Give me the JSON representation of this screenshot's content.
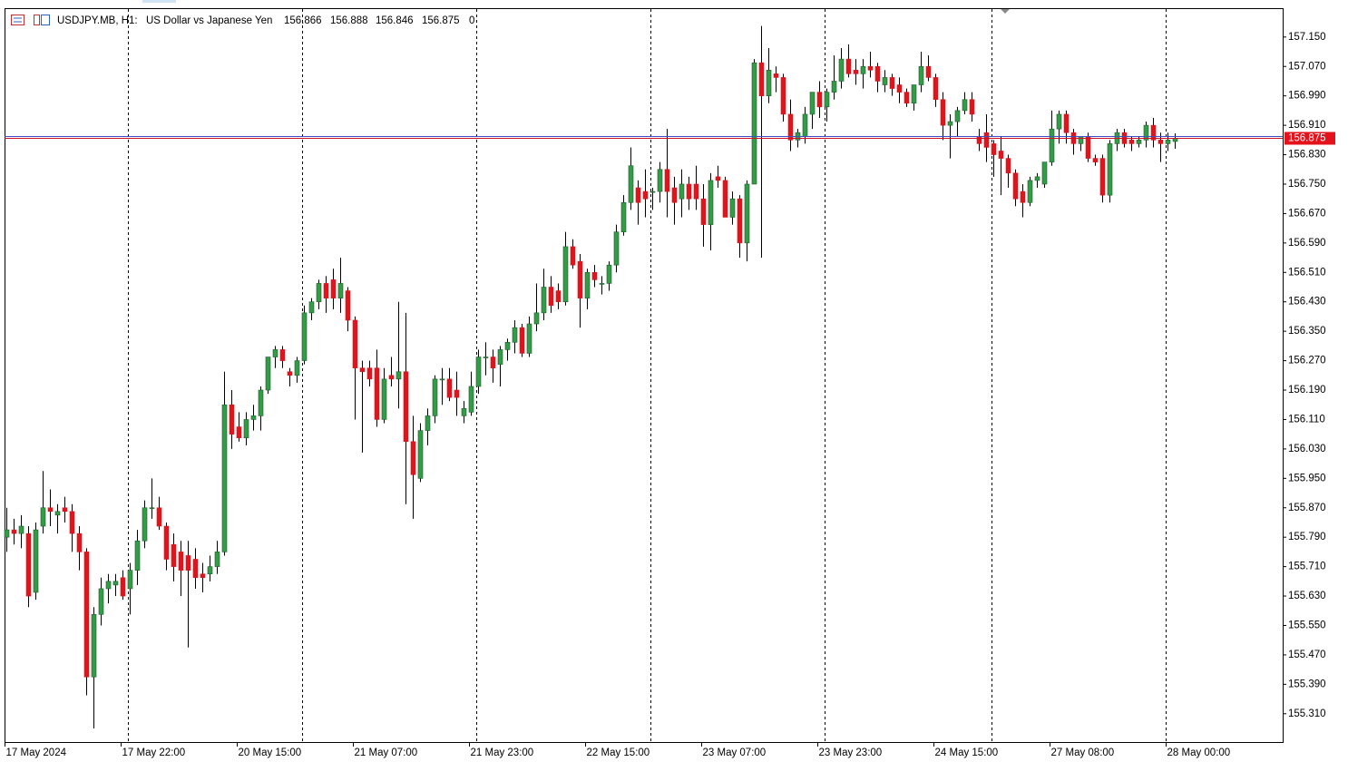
{
  "chart_data": {
    "type": "candlestick",
    "symbol": "USDJPY.MB, H1:",
    "description": "US Dollar vs Japanese Yen",
    "volume": 0,
    "up_color": "#2f9e44",
    "down_color": "#e3121b",
    "wick_color": "#000000",
    "categories": [
      "17 May 2024",
      null,
      null,
      null,
      null,
      null,
      null,
      null,
      null,
      null,
      null,
      null,
      null,
      null,
      null,
      null,
      "17 May 22:00",
      null,
      null,
      null,
      null,
      null,
      null,
      null,
      null,
      null,
      null,
      null,
      null,
      null,
      null,
      null,
      "20 May 15:00",
      null,
      null,
      null,
      null,
      null,
      null,
      null,
      null,
      null,
      null,
      null,
      null,
      null,
      null,
      null,
      "21 May 07:00",
      null,
      null,
      null,
      null,
      null,
      null,
      null,
      null,
      null,
      null,
      null,
      null,
      null,
      null,
      null,
      "21 May 23:00",
      null,
      null,
      null,
      null,
      null,
      null,
      null,
      null,
      null,
      null,
      null,
      null,
      null,
      null,
      null,
      "22 May 15:00",
      null,
      null,
      null,
      null,
      null,
      null,
      null,
      null,
      null,
      null,
      null,
      null,
      null,
      null,
      null,
      "23 May 07:00",
      null,
      null,
      null,
      null,
      null,
      null,
      null,
      null,
      null,
      null,
      null,
      null,
      null,
      null,
      null,
      "23 May 23:00",
      null,
      null,
      null,
      null,
      null,
      null,
      null,
      null,
      null,
      null,
      null,
      null,
      null,
      null,
      null,
      "24 May 15:00",
      null,
      null,
      null,
      null,
      null,
      null,
      null,
      null,
      null,
      null,
      null,
      null,
      null,
      null,
      null,
      "27 May 08:00",
      null,
      null,
      null,
      null,
      null,
      null,
      null,
      null,
      null,
      null,
      null,
      null,
      null,
      null,
      null,
      "28 May 00:00",
      null
    ],
    "open": [
      155.79,
      155.81,
      155.8,
      155.8,
      155.64,
      155.82,
      155.87,
      155.85,
      155.87,
      155.86,
      155.8,
      155.75,
      155.41,
      155.58,
      155.65,
      155.66,
      155.68,
      155.65,
      155.7,
      155.78,
      155.87,
      155.87,
      155.82,
      155.77,
      155.75,
      155.74,
      155.73,
      155.69,
      155.69,
      155.71,
      155.75,
      156.15,
      156.09,
      156.06,
      156.11,
      156.12,
      156.19,
      156.28,
      156.3,
      156.24,
      156.23,
      156.27,
      156.4,
      156.43,
      156.48,
      156.49,
      156.44,
      156.46,
      156.38,
      156.25,
      156.25,
      156.25,
      156.11,
      156.23,
      156.22,
      156.24,
      156.05,
      155.95,
      156.08,
      156.12,
      156.22,
      156.22,
      156.19,
      156.12,
      156.13,
      156.2,
      156.28,
      156.28,
      156.26,
      156.3,
      156.32,
      156.36,
      156.29,
      156.37,
      156.4,
      156.47,
      156.46,
      156.43,
      156.58,
      156.54,
      156.44,
      156.51,
      156.48,
      156.48,
      156.53,
      156.62,
      156.7,
      156.74,
      156.73,
      156.73,
      156.73,
      156.79,
      156.74,
      156.71,
      156.75,
      156.75,
      156.71,
      156.64,
      156.77,
      156.76,
      156.66,
      156.71,
      156.59,
      156.75,
      157.08,
      156.99,
      157.05,
      157.04,
      156.94,
      156.87,
      156.88,
      156.94,
      157.0,
      156.96,
      157.0,
      157.03,
      157.09,
      157.06,
      157.05,
      157.07,
      157.07,
      157.02,
      157.04,
      157.02,
      157.0,
      156.97,
      157.02,
      157.07,
      157.04,
      156.98,
      156.91,
      156.92,
      156.95,
      156.98,
      156.88,
      156.89,
      156.86,
      156.84,
      156.82,
      156.78,
      156.73,
      156.7,
      156.76,
      156.75,
      156.81,
      156.9,
      156.94,
      156.89,
      156.86,
      156.88,
      156.82,
      156.82,
      156.72,
      156.86,
      156.89,
      156.87,
      156.86,
      156.87,
      156.91,
      156.87,
      156.86,
      156.866
    ],
    "high": [
      155.87,
      155.84,
      155.85,
      155.82,
      155.83,
      155.97,
      155.92,
      155.88,
      155.9,
      155.88,
      155.82,
      155.76,
      155.6,
      155.68,
      155.69,
      155.69,
      155.7,
      155.72,
      155.81,
      155.89,
      155.95,
      155.9,
      155.83,
      155.8,
      155.78,
      155.78,
      155.76,
      155.72,
      155.74,
      155.78,
      156.24,
      156.19,
      156.13,
      156.13,
      156.15,
      156.2,
      156.28,
      156.31,
      156.31,
      156.25,
      156.28,
      156.42,
      156.44,
      156.49,
      156.5,
      156.52,
      156.55,
      156.47,
      156.39,
      156.27,
      156.27,
      156.3,
      156.25,
      156.28,
      156.43,
      156.4,
      156.12,
      156.1,
      156.14,
      156.23,
      156.25,
      156.25,
      156.24,
      156.16,
      156.24,
      156.3,
      156.32,
      156.3,
      156.31,
      156.33,
      156.38,
      156.37,
      156.39,
      156.48,
      156.52,
      156.5,
      156.48,
      156.62,
      156.6,
      156.56,
      156.52,
      156.53,
      156.5,
      156.54,
      156.64,
      156.72,
      156.85,
      156.76,
      156.79,
      156.74,
      156.81,
      156.9,
      156.77,
      156.79,
      156.77,
      156.8,
      156.75,
      156.78,
      156.8,
      156.77,
      156.73,
      156.72,
      156.76,
      157.09,
      157.18,
      157.12,
      157.07,
      157.05,
      156.98,
      156.9,
      156.96,
      157.0,
      157.03,
      157.01,
      157.1,
      157.12,
      157.13,
      157.09,
      157.09,
      157.11,
      157.08,
      157.06,
      157.05,
      157.04,
      157.01,
      157.02,
      157.11,
      157.1,
      157.05,
      157.0,
      156.94,
      156.96,
      157.0,
      157.0,
      156.9,
      156.94,
      156.87,
      156.88,
      156.83,
      156.79,
      156.75,
      156.77,
      156.78,
      156.81,
      156.95,
      156.95,
      156.95,
      156.9,
      156.88,
      156.89,
      156.83,
      156.83,
      156.87,
      156.9,
      156.9,
      156.88,
      156.88,
      156.92,
      156.93,
      156.89,
      156.89,
      156.888
    ],
    "low": [
      155.75,
      155.77,
      155.76,
      155.6,
      155.62,
      155.8,
      155.82,
      155.8,
      155.83,
      155.75,
      155.7,
      155.36,
      155.27,
      155.55,
      155.61,
      155.63,
      155.62,
      155.58,
      155.66,
      155.76,
      155.84,
      155.81,
      155.7,
      155.67,
      155.63,
      155.49,
      155.65,
      155.64,
      155.67,
      155.69,
      155.74,
      156.03,
      156.05,
      156.04,
      156.08,
      156.08,
      156.18,
      156.25,
      156.25,
      156.2,
      156.21,
      156.26,
      156.38,
      156.41,
      156.4,
      156.41,
      156.4,
      156.35,
      156.11,
      156.02,
      156.2,
      156.09,
      156.1,
      156.2,
      156.14,
      155.88,
      155.84,
      155.94,
      156.04,
      156.1,
      156.15,
      156.16,
      156.12,
      156.1,
      156.12,
      156.18,
      156.23,
      156.21,
      156.2,
      156.27,
      156.29,
      156.28,
      156.28,
      156.35,
      156.38,
      156.4,
      156.41,
      156.42,
      156.52,
      156.36,
      156.41,
      156.47,
      156.45,
      156.46,
      156.51,
      156.61,
      156.68,
      156.64,
      156.66,
      156.68,
      156.7,
      156.66,
      156.64,
      156.66,
      156.68,
      156.68,
      156.58,
      156.57,
      156.74,
      156.66,
      156.64,
      156.55,
      156.54,
      156.75,
      156.55,
      156.97,
      157.0,
      156.92,
      156.84,
      156.85,
      156.86,
      156.9,
      156.93,
      156.92,
      156.98,
      157.01,
      157.04,
      157.02,
      157.01,
      157.04,
      157.0,
      157.0,
      156.99,
      156.97,
      156.96,
      156.95,
      157.0,
      157.03,
      156.96,
      156.87,
      156.82,
      156.88,
      156.94,
      156.92,
      156.84,
      156.81,
      156.77,
      156.72,
      156.74,
      156.69,
      156.66,
      156.69,
      156.74,
      156.74,
      156.8,
      156.86,
      156.86,
      156.83,
      156.84,
      156.81,
      156.8,
      156.7,
      156.7,
      156.84,
      156.85,
      156.84,
      156.85,
      156.85,
      156.85,
      156.81,
      156.84,
      156.846
    ],
    "close": [
      155.81,
      155.8,
      155.82,
      155.63,
      155.81,
      155.87,
      155.86,
      155.86,
      155.86,
      155.8,
      155.75,
      155.41,
      155.58,
      155.65,
      155.67,
      155.67,
      155.63,
      155.7,
      155.78,
      155.87,
      155.87,
      155.82,
      155.73,
      155.71,
      155.7,
      155.7,
      155.68,
      155.68,
      155.71,
      155.75,
      156.15,
      156.07,
      156.06,
      156.11,
      156.12,
      156.19,
      156.28,
      156.3,
      156.27,
      156.23,
      156.27,
      156.4,
      156.43,
      156.48,
      156.44,
      156.44,
      156.48,
      156.38,
      156.25,
      156.24,
      156.22,
      156.11,
      156.22,
      156.22,
      156.24,
      156.05,
      155.96,
      156.08,
      156.12,
      156.22,
      156.22,
      156.17,
      156.17,
      156.14,
      156.2,
      156.28,
      156.28,
      156.25,
      156.3,
      156.32,
      156.36,
      156.29,
      156.37,
      156.4,
      156.47,
      156.42,
      156.43,
      156.58,
      156.53,
      156.44,
      156.51,
      156.49,
      156.48,
      156.53,
      156.62,
      156.7,
      156.8,
      156.7,
      156.71,
      156.73,
      156.79,
      156.73,
      156.7,
      156.75,
      156.71,
      156.71,
      156.64,
      156.76,
      156.76,
      156.66,
      156.71,
      156.59,
      156.75,
      157.08,
      156.99,
      157.06,
      157.04,
      156.94,
      156.87,
      156.89,
      156.94,
      157.0,
      156.96,
      157.0,
      157.03,
      157.09,
      157.05,
      157.05,
      157.07,
      157.06,
      157.03,
      157.04,
      157.01,
      157.0,
      156.97,
      157.02,
      157.07,
      157.04,
      156.98,
      156.91,
      156.92,
      156.95,
      156.98,
      156.94,
      156.86,
      156.85,
      156.83,
      156.82,
      156.78,
      156.71,
      156.7,
      156.76,
      156.77,
      156.81,
      156.9,
      156.94,
      156.89,
      156.86,
      156.88,
      156.82,
      156.81,
      156.72,
      156.86,
      156.89,
      156.86,
      156.86,
      156.87,
      156.91,
      156.87,
      156.86,
      156.87,
      156.875
    ],
    "ylim": [
      155.233,
      157.226
    ],
    "yticks": [
      {
        "value": 157.15,
        "label": "157.150"
      },
      {
        "value": 157.07,
        "label": "157.070"
      },
      {
        "value": 156.99,
        "label": "156.990"
      },
      {
        "value": 156.91,
        "label": "156.910"
      },
      {
        "value": 156.83,
        "label": "156.830"
      },
      {
        "value": 156.75,
        "label": "156.750"
      },
      {
        "value": 156.67,
        "label": "156.670"
      },
      {
        "value": 156.59,
        "label": "156.590"
      },
      {
        "value": 156.51,
        "label": "156.510"
      },
      {
        "value": 156.43,
        "label": "156.430"
      },
      {
        "value": 156.35,
        "label": "156.350"
      },
      {
        "value": 156.27,
        "label": "156.270"
      },
      {
        "value": 156.19,
        "label": "156.190"
      },
      {
        "value": 156.11,
        "label": "156.110"
      },
      {
        "value": 156.03,
        "label": "156.030"
      },
      {
        "value": 155.95,
        "label": "155.950"
      },
      {
        "value": 155.87,
        "label": "155.870"
      },
      {
        "value": 155.79,
        "label": "155.790"
      },
      {
        "value": 155.71,
        "label": "155.710"
      },
      {
        "value": 155.63,
        "label": "155.630"
      },
      {
        "value": 155.55,
        "label": "155.550"
      },
      {
        "value": 155.47,
        "label": "155.470"
      },
      {
        "value": 155.39,
        "label": "155.390"
      },
      {
        "value": 155.31,
        "label": "155.310"
      }
    ],
    "grid": false
  }
}
